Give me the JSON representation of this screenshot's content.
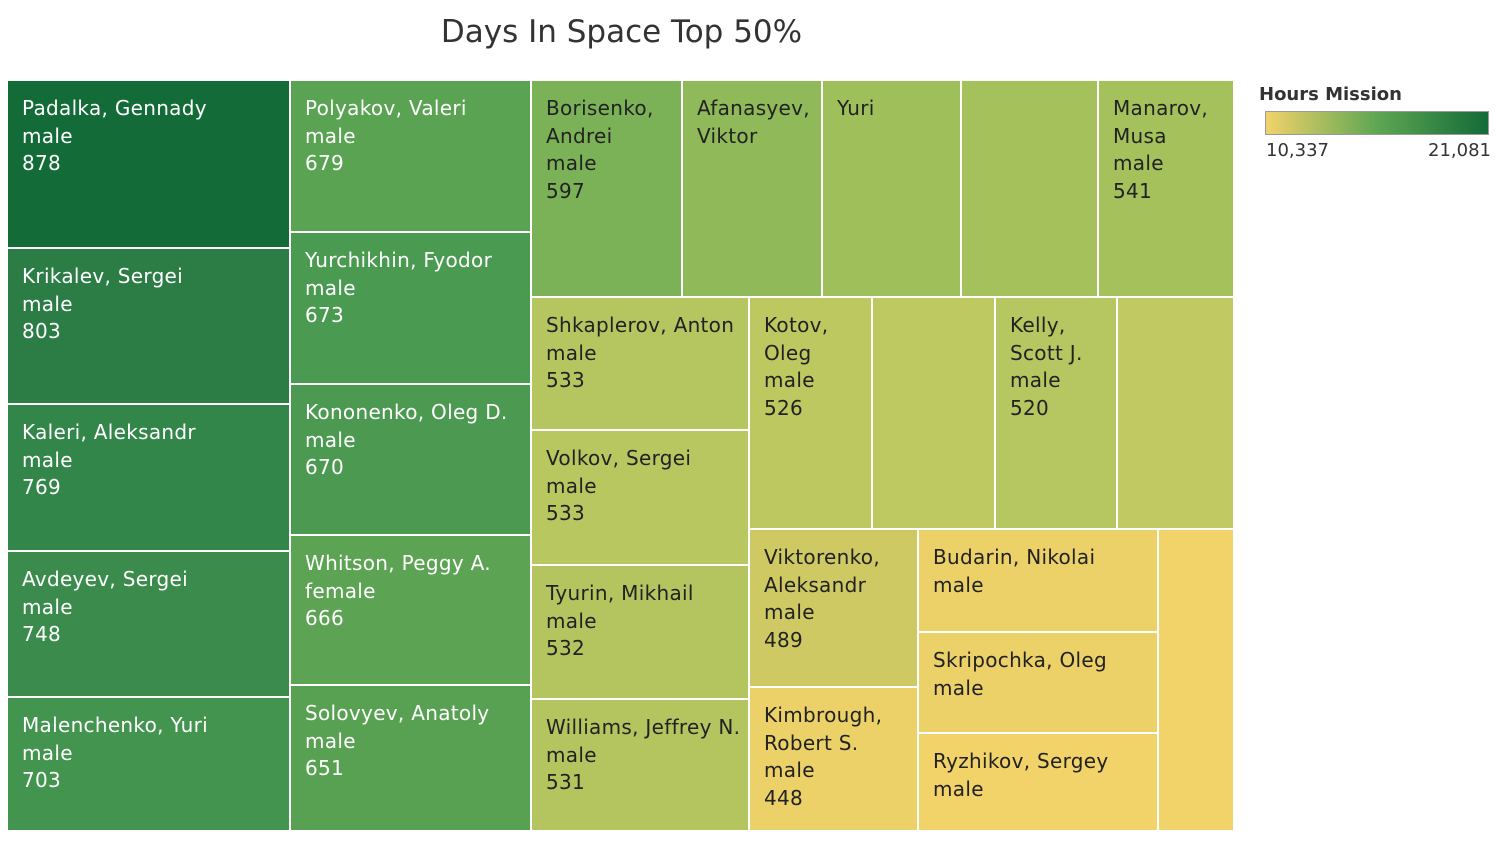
{
  "title": "Days In Space Top 50%",
  "legend": {
    "title": "Hours Mission",
    "min_label": "10,337",
    "max_label": "21,081",
    "min_color": "#f2d36a",
    "max_color": "#136b38"
  },
  "chart_data": {
    "type": "treemap",
    "title": "Days In Space Top 50%",
    "size_measure": "days in space",
    "color_measure": "Hours Mission",
    "color_range": [
      10337,
      21081
    ],
    "items": [
      {
        "name": "Padalka, Gennady",
        "gender": "male",
        "days": 878,
        "color": "#136b38",
        "lines": [
          "Padalka, Gennady",
          "male",
          "878"
        ]
      },
      {
        "name": "Krikalev, Sergei",
        "gender": "male",
        "days": 803,
        "color": "#2b7d45",
        "lines": [
          "Krikalev, Sergei",
          "male",
          "803"
        ]
      },
      {
        "name": "Kaleri, Aleksandr",
        "gender": "male",
        "days": 769,
        "color": "#338649",
        "lines": [
          "Kaleri, Aleksandr",
          "male",
          "769"
        ]
      },
      {
        "name": "Avdeyev, Sergei",
        "gender": "male",
        "days": 748,
        "color": "#3b8c4c",
        "lines": [
          "Avdeyev, Sergei",
          "male",
          "748"
        ]
      },
      {
        "name": "Malenchenko, Yuri",
        "gender": "male",
        "days": 703,
        "color": "#42944f",
        "lines": [
          "Malenchenko, Yuri",
          "male",
          "703"
        ]
      },
      {
        "name": "Polyakov, Valeri",
        "gender": "male",
        "days": 679,
        "color": "#5aa353",
        "lines": [
          "Polyakov, Valeri",
          "male",
          "679"
        ]
      },
      {
        "name": "Yurchikhin, Fyodor",
        "gender": "male",
        "days": 673,
        "color": "#4b9a51",
        "lines": [
          "Yurchikhin, Fyodor",
          "male",
          "673"
        ]
      },
      {
        "name": "Kononenko, Oleg D.",
        "gender": "male",
        "days": 670,
        "color": "#4c9a51",
        "lines": [
          "Kononenko, Oleg D.",
          "male",
          "670"
        ]
      },
      {
        "name": "Whitson, Peggy A.",
        "gender": "female",
        "days": 666,
        "color": "#5ca353",
        "lines": [
          "Whitson, Peggy A.",
          "female",
          "666"
        ]
      },
      {
        "name": "Solovyev, Anatoly",
        "gender": "male",
        "days": 651,
        "color": "#58a152",
        "lines": [
          "Solovyev, Anatoly",
          "male",
          "651"
        ]
      },
      {
        "name": "Borisenko, Andrei",
        "gender": "male",
        "days": 597,
        "color": "#7cb257",
        "lines": [
          "Borisenko,",
          "Andrei",
          "male",
          "597"
        ]
      },
      {
        "name": "Afanasyev, Viktor",
        "color": "#90b95a",
        "lines": [
          "Afanasyev,",
          "Viktor"
        ]
      },
      {
        "name": "Yuri",
        "color": "#9fbf5b",
        "lines": [
          "Yuri"
        ]
      },
      {
        "name": "",
        "color": "#a4c15c",
        "lines": []
      },
      {
        "name": "Manarov, Musa",
        "gender": "male",
        "days": 541,
        "color": "#a4c15c",
        "lines": [
          "Manarov,",
          "Musa",
          "male",
          "541"
        ]
      },
      {
        "name": "Shkaplerov, Anton",
        "gender": "male",
        "days": 533,
        "color": "#b5c660",
        "lines": [
          "Shkaplerov, Anton",
          "male",
          "533"
        ]
      },
      {
        "name": "Volkov, Sergei",
        "gender": "male",
        "days": 533,
        "color": "#b9c761",
        "lines": [
          "Volkov, Sergei",
          "male",
          "533"
        ]
      },
      {
        "name": "Tyurin, Mikhail",
        "gender": "male",
        "days": 532,
        "color": "#b4c55f",
        "lines": [
          "Tyurin, Mikhail",
          "male",
          "532"
        ]
      },
      {
        "name": "Williams, Jeffrey N.",
        "gender": "male",
        "days": 531,
        "color": "#b4c55f",
        "lines": [
          "Williams, Jeffrey N.",
          "male",
          "531"
        ]
      },
      {
        "name": "Kotov, Oleg",
        "gender": "male",
        "days": 526,
        "color": "#bdc861",
        "lines": [
          "Kotov,",
          "Oleg",
          "male",
          "526"
        ]
      },
      {
        "name": "",
        "color": "#bec962",
        "lines": []
      },
      {
        "name": "Kelly, Scott J.",
        "gender": "male",
        "days": 520,
        "color": "#b6c660",
        "lines": [
          "Kelly,",
          "Scott J.",
          "male",
          "520"
        ]
      },
      {
        "name": "",
        "color": "#c0c962",
        "lines": []
      },
      {
        "name": "Viktorenko, Aleksandr",
        "gender": "male",
        "days": 489,
        "color": "#cfc964",
        "lines": [
          "Viktorenko,",
          "Aleksandr",
          "male",
          "489"
        ]
      },
      {
        "name": "Kimbrough, Robert S.",
        "gender": "male",
        "days": 448,
        "color": "#ebd168",
        "lines": [
          "Kimbrough,",
          "Robert S.",
          "male",
          "448"
        ]
      },
      {
        "name": "Budarin, Nikolai",
        "gender": "male",
        "color": "#ecd068",
        "lines": [
          "Budarin, Nikolai",
          "male"
        ]
      },
      {
        "name": "Skripochka, Oleg",
        "gender": "male",
        "color": "#ecd068",
        "lines": [
          "Skripochka, Oleg",
          "male"
        ]
      },
      {
        "name": "Ryzhikov, Sergey",
        "gender": "male",
        "color": "#f1d36a",
        "lines": [
          "Ryzhikov, Sergey",
          "male"
        ]
      },
      {
        "name": "",
        "color": "#f2d36a",
        "lines": []
      }
    ]
  }
}
